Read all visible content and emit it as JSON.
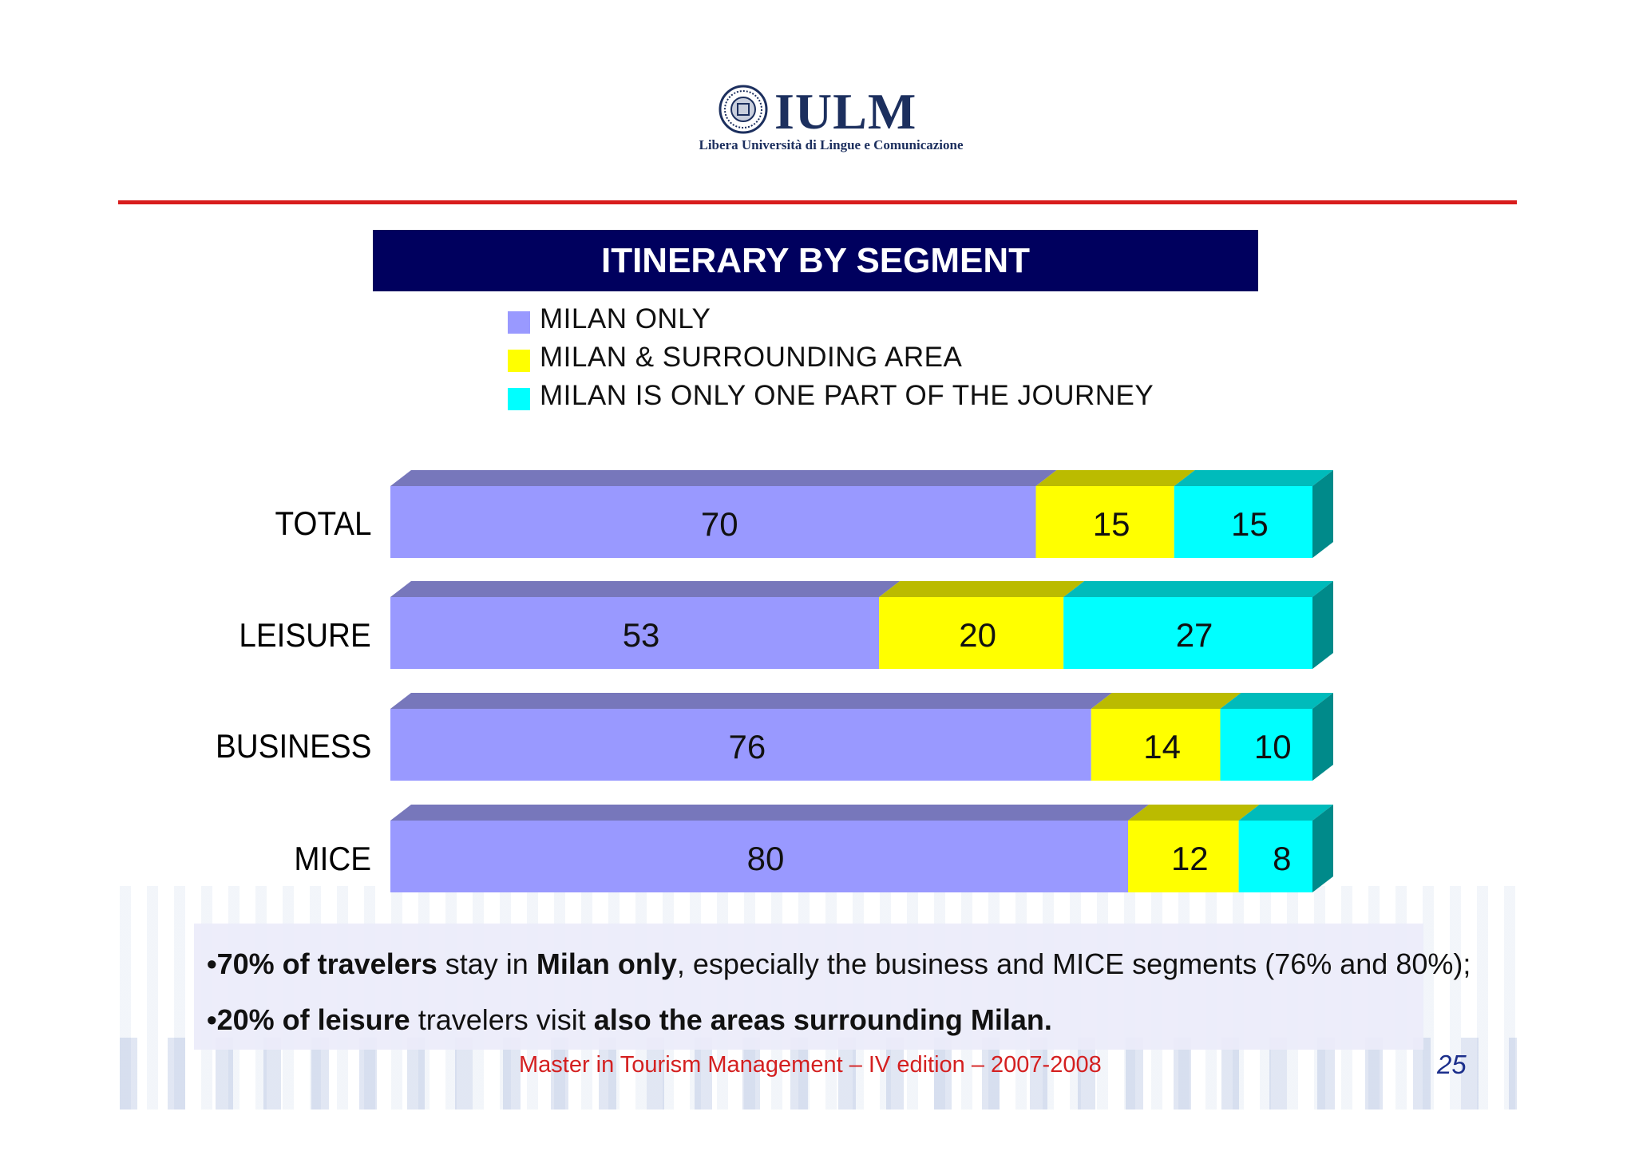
{
  "header": {
    "logo_text": "IULM",
    "logo_subtitle": "Libera Università di Lingue e Comunicazione"
  },
  "chart_data": {
    "type": "bar",
    "orientation": "horizontal",
    "stacked": true,
    "title": "ITINERARY BY SEGMENT",
    "categories": [
      "TOTAL",
      "LEISURE",
      "BUSINESS",
      "MICE"
    ],
    "series": [
      {
        "name": "MILAN ONLY",
        "values": [
          70,
          53,
          76,
          80
        ],
        "color": "#9999ff"
      },
      {
        "name": "MILAN & SURROUNDING AREA",
        "values": [
          15,
          20,
          14,
          12
        ],
        "color": "#ffff00"
      },
      {
        "name": "MILAN IS ONLY ONE PART OF THE JOURNEY",
        "values": [
          15,
          27,
          10,
          8
        ],
        "color": "#00ffff"
      }
    ],
    "xlim": [
      0,
      100
    ],
    "grid": false,
    "legend_position": "top",
    "data_labels": true,
    "style": "3d"
  },
  "notes": {
    "line1": {
      "b1": "•70% of travelers",
      "t1": " stay in ",
      "b2": "Milan only",
      "t2": ", especially the business and MICE segments (76% and 80%);"
    },
    "line2": {
      "b1": "•20% of leisure",
      "t1": " travelers visit ",
      "b2": "also the areas surrounding Milan."
    }
  },
  "footer": {
    "text": "Master in Tourism Management – IV edition – 2007-2008",
    "page_number": "25"
  },
  "colors": {
    "title_bar": "#00005e",
    "rule": "#d81c1c",
    "footer_text": "#d42020",
    "page_number": "#1c2f8c"
  }
}
